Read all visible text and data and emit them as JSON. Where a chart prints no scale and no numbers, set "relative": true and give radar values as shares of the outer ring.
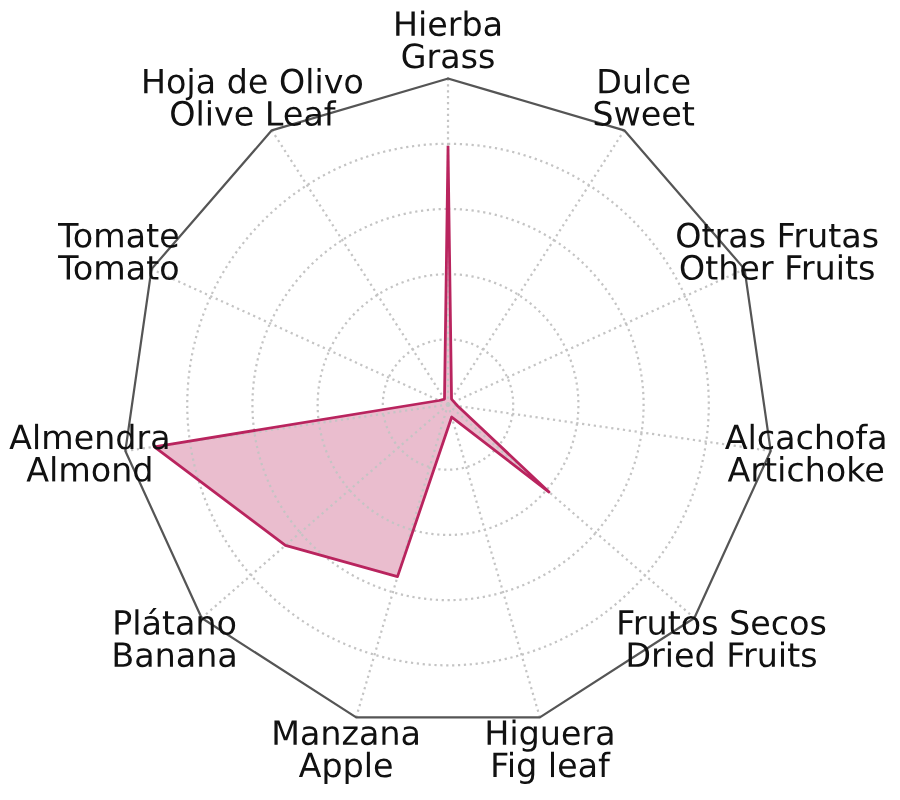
{
  "chart_data": {
    "type": "radar",
    "relative": true,
    "grid": true,
    "categories": [
      "Hierba\nGrass",
      "Dulce\nSweet",
      "Otras Frutas\nOther Fruits",
      "Alcachofa\nArtichoke",
      "Frutos Secos\nDried Fruits",
      "Higuera\nFig leaf",
      "Manzana\nApple",
      "Plátano\nBanana",
      "Almendra\nAlmond",
      "Tomate\nTomato",
      "Hoja de Olivo\nOlive Leaf"
    ],
    "series": [
      {
        "color": "#b9245e",
        "values": [
          0.79,
          0.02,
          0.02,
          0.03,
          0.41,
          0.04,
          0.55,
          0.66,
          0.91,
          0.03,
          0.02
        ]
      }
    ]
  }
}
